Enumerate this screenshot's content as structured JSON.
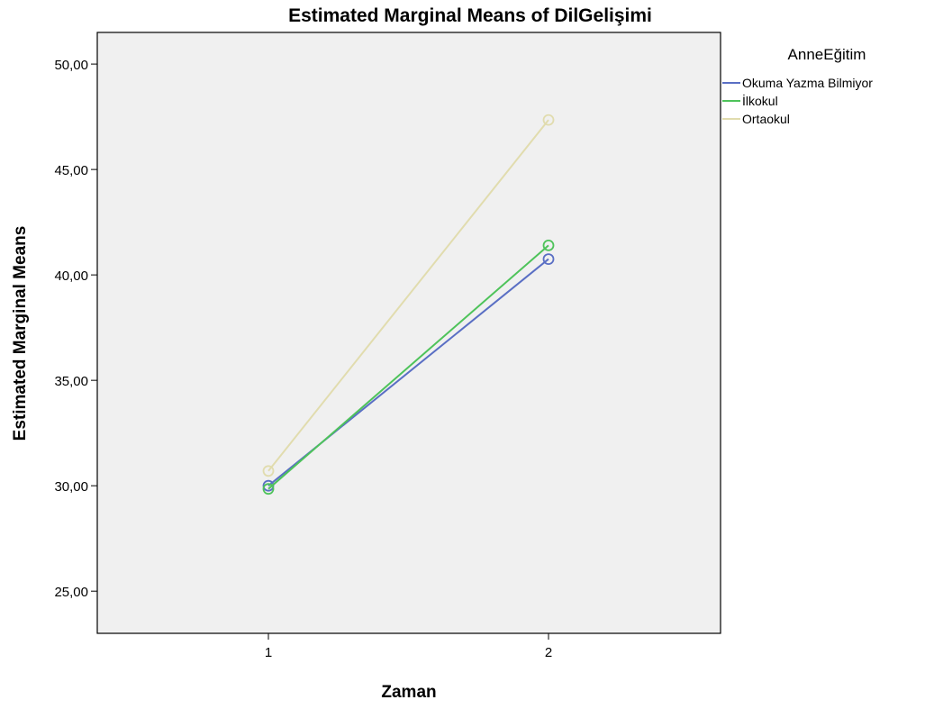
{
  "chart_data": {
    "type": "line",
    "title": "Estimated Marginal Means of DilGelişimi",
    "xlabel": "Zaman",
    "ylabel": "Estimated Marginal Means",
    "categories": [
      "1",
      "2"
    ],
    "ylim": [
      23.0,
      51.5
    ],
    "yticks": [
      25,
      30,
      35,
      40,
      45,
      50
    ],
    "ytick_labels": [
      "25,00",
      "30,00",
      "35,00",
      "40,00",
      "45,00",
      "50,00"
    ],
    "grid": false,
    "legend": {
      "title": "AnneEğitim",
      "placement": "right"
    },
    "series": [
      {
        "name": "Okuma Yazma Bilmiyor",
        "color": "#5a6fc4",
        "values": [
          30.0,
          40.75
        ]
      },
      {
        "name": "İlkokul",
        "color": "#4ec35a",
        "values": [
          29.85,
          41.4
        ]
      },
      {
        "name": "Ortaokul",
        "color": "#e1dcae",
        "values": [
          30.7,
          47.35
        ]
      }
    ],
    "colors": {
      "plot_background": "#f0f0f0",
      "axis": "#000000"
    }
  }
}
